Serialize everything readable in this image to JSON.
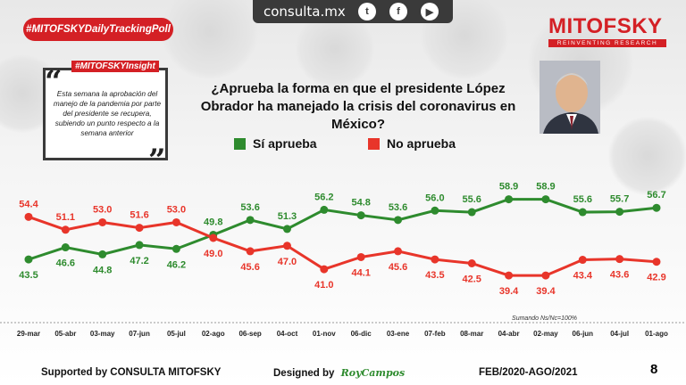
{
  "header": {
    "site": "consulta.mx",
    "badge": "#MITOFSKYDailyTrackingPoll",
    "brand": "MITOFSKY",
    "brand_sub": "REINVENTING RESEARCH",
    "insight_tag": "#MITOFSKYInsight"
  },
  "insight": {
    "text": "Esta semana la aprobación del manejo de la pandemia por parte del presidente se recupera, subiendo un punto respecto a la semana anterior"
  },
  "footer": {
    "supported": "Supported by   CONSULTA  MITOFSKY",
    "designed": "Designed by",
    "designer": "RoyCampos",
    "period": "FEB/2020-AGO/2021",
    "page": "8"
  },
  "colors": {
    "approve": "#2e8b2e",
    "disapprove": "#e8352a",
    "brand": "#d42025"
  },
  "chart_data": {
    "type": "line",
    "title": "¿Aprueba la forma en que el presidente López Obrador ha manejado la crisis del coronavirus en México?",
    "categories": [
      "29-mar",
      "05-abr",
      "03-may",
      "07-jun",
      "05-jul",
      "02-ago",
      "06-sep",
      "04-oct",
      "01-nov",
      "06-dic",
      "03-ene",
      "07-feb",
      "08-mar",
      "04-abr",
      "02-may",
      "06-jun",
      "04-jul",
      "01-ago"
    ],
    "series": [
      {
        "name": "Sí aprueba",
        "color": "#2e8b2e",
        "values": [
          43.5,
          46.6,
          44.8,
          47.2,
          46.2,
          49.8,
          53.6,
          51.3,
          56.2,
          54.8,
          53.6,
          56.0,
          55.6,
          58.9,
          58.9,
          55.6,
          55.7,
          56.7
        ]
      },
      {
        "name": "No aprueba",
        "color": "#e8352a",
        "values": [
          54.4,
          51.1,
          53.0,
          51.6,
          53.0,
          49.0,
          45.6,
          47.0,
          41.0,
          44.1,
          45.6,
          43.5,
          42.5,
          39.4,
          39.4,
          43.4,
          43.6,
          42.9
        ]
      }
    ],
    "note": "Sumando Ns/Nc=100%",
    "ylim": [
      36,
      62
    ],
    "grid": false,
    "legend_position": "top-center"
  }
}
